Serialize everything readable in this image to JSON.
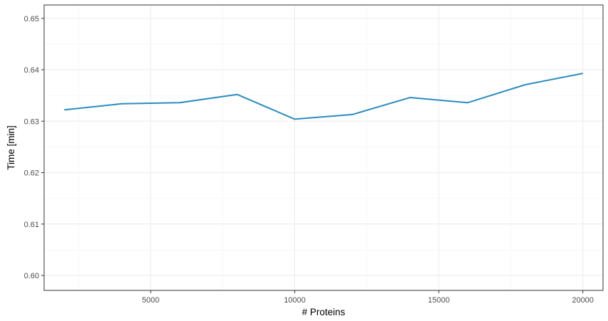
{
  "chart_data": {
    "type": "line",
    "title": "",
    "xlabel": "# Proteins",
    "ylabel": "Time [min]",
    "xlim": [
      1300,
      20700
    ],
    "ylim": [
      0.5971,
      0.6526
    ],
    "x_ticks": [
      5000,
      10000,
      15000,
      20000
    ],
    "x_tick_labels": [
      "5000",
      "10000",
      "15000",
      "20000"
    ],
    "x_minor_ticks": [
      2500,
      7500,
      12500,
      17500
    ],
    "y_ticks": [
      0.6,
      0.61,
      0.62,
      0.63,
      0.64,
      0.65
    ],
    "y_tick_labels": [
      "0.60",
      "0.61",
      "0.62",
      "0.63",
      "0.64",
      "0.65"
    ],
    "y_minor_ticks": [
      0.605,
      0.615,
      0.625,
      0.635,
      0.645
    ],
    "grid": true,
    "legend": "none",
    "series": [
      {
        "name": "time",
        "color": "#2b8cbe",
        "x": [
          2000,
          4000,
          6000,
          8000,
          10000,
          12000,
          14000,
          16000,
          18000,
          20000
        ],
        "y": [
          0.6322,
          0.6334,
          0.6336,
          0.6352,
          0.6304,
          0.6313,
          0.6346,
          0.6336,
          0.6371,
          0.6393
        ]
      }
    ]
  }
}
